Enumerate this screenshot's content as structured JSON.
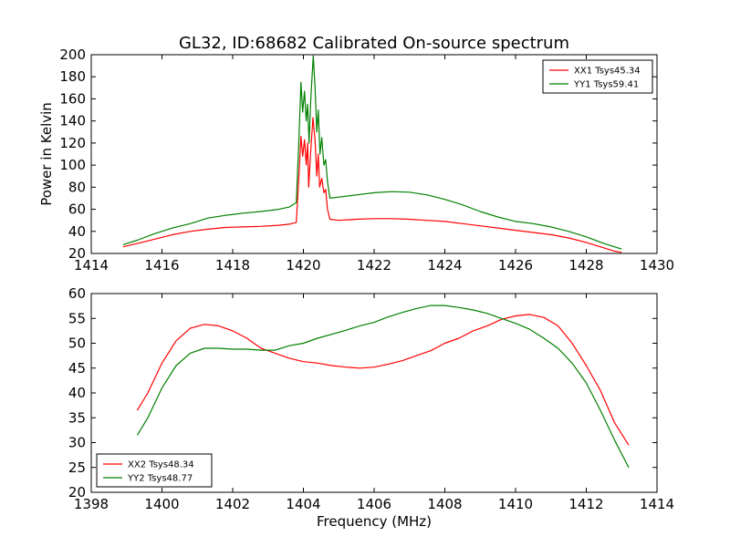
{
  "figure": {
    "title": "GL32, ID:68682 Calibrated On-source spectrum",
    "xlabel": "Frequency (MHz)"
  },
  "chart_data": [
    {
      "type": "line",
      "ylabel": "Power in Kelvin",
      "xlim": [
        1414,
        1430
      ],
      "ylim": [
        20,
        200
      ],
      "xticks": [
        1414,
        1416,
        1418,
        1420,
        1422,
        1424,
        1426,
        1428,
        1430
      ],
      "yticks": [
        20,
        40,
        60,
        80,
        100,
        120,
        140,
        160,
        180,
        200
      ],
      "legend": "top-right",
      "series": [
        {
          "name": "XX1 Tsys45.34",
          "color": "#ff0000",
          "points": [
            [
              1414.9,
              26
            ],
            [
              1415.3,
              29
            ],
            [
              1415.8,
              33
            ],
            [
              1416.3,
              37
            ],
            [
              1416.8,
              40
            ],
            [
              1417.3,
              42
            ],
            [
              1417.8,
              43.5
            ],
            [
              1418.3,
              44
            ],
            [
              1418.8,
              44.5
            ],
            [
              1419.3,
              45.5
            ],
            [
              1419.6,
              46.5
            ],
            [
              1419.8,
              48
            ],
            [
              1419.88,
              95
            ],
            [
              1419.93,
              126
            ],
            [
              1419.98,
              108
            ],
            [
              1420.03,
              123
            ],
            [
              1420.08,
              100
            ],
            [
              1420.12,
              120
            ],
            [
              1420.15,
              80
            ],
            [
              1420.2,
              110
            ],
            [
              1420.27,
              143
            ],
            [
              1420.33,
              122
            ],
            [
              1420.38,
              90
            ],
            [
              1420.42,
              110
            ],
            [
              1420.46,
              80
            ],
            [
              1420.52,
              88
            ],
            [
              1420.58,
              75
            ],
            [
              1420.63,
              78
            ],
            [
              1420.68,
              60
            ],
            [
              1420.75,
              51
            ],
            [
              1421,
              50
            ],
            [
              1421.5,
              51
            ],
            [
              1422,
              51.5
            ],
            [
              1422.5,
              51.5
            ],
            [
              1423,
              51
            ],
            [
              1423.5,
              50
            ],
            [
              1424,
              49
            ],
            [
              1424.5,
              47
            ],
            [
              1425,
              45
            ],
            [
              1425.5,
              43
            ],
            [
              1426,
              41
            ],
            [
              1426.5,
              39
            ],
            [
              1427,
              37
            ],
            [
              1427.5,
              34
            ],
            [
              1428,
              30
            ],
            [
              1428.5,
              25
            ],
            [
              1428.8,
              22
            ],
            [
              1429,
              21
            ]
          ]
        },
        {
          "name": "YY1 Tsys59.41",
          "color": "#008000",
          "points": [
            [
              1414.9,
              28
            ],
            [
              1415.3,
              32
            ],
            [
              1415.8,
              38
            ],
            [
              1416.3,
              43
            ],
            [
              1416.8,
              47
            ],
            [
              1417.3,
              52
            ],
            [
              1417.8,
              54.5
            ],
            [
              1418.3,
              56.5
            ],
            [
              1418.8,
              58
            ],
            [
              1419.3,
              60
            ],
            [
              1419.6,
              62
            ],
            [
              1419.8,
              66
            ],
            [
              1419.88,
              130
            ],
            [
              1419.93,
              175
            ],
            [
              1419.98,
              148
            ],
            [
              1420.03,
              167
            ],
            [
              1420.08,
              140
            ],
            [
              1420.12,
              155
            ],
            [
              1420.16,
              120
            ],
            [
              1420.21,
              160
            ],
            [
              1420.28,
              199
            ],
            [
              1420.33,
              170
            ],
            [
              1420.38,
              130
            ],
            [
              1420.42,
              150
            ],
            [
              1420.47,
              110
            ],
            [
              1420.52,
              125
            ],
            [
              1420.58,
              100
            ],
            [
              1420.63,
              105
            ],
            [
              1420.68,
              85
            ],
            [
              1420.75,
              70
            ],
            [
              1421,
              71
            ],
            [
              1421.5,
              73
            ],
            [
              1422,
              75
            ],
            [
              1422.5,
              76
            ],
            [
              1423,
              75.5
            ],
            [
              1423.5,
              73
            ],
            [
              1424,
              69
            ],
            [
              1424.5,
              64
            ],
            [
              1425,
              58
            ],
            [
              1425.5,
              53
            ],
            [
              1426,
              49
            ],
            [
              1426.5,
              47
            ],
            [
              1427,
              44
            ],
            [
              1427.5,
              40
            ],
            [
              1428,
              35
            ],
            [
              1428.5,
              29
            ],
            [
              1429,
              24
            ]
          ]
        }
      ]
    },
    {
      "type": "line",
      "xlabel": "Frequency (MHz)",
      "xlim": [
        1398,
        1414
      ],
      "ylim": [
        20,
        60
      ],
      "xticks": [
        1398,
        1400,
        1402,
        1404,
        1406,
        1408,
        1410,
        1412,
        1414
      ],
      "yticks": [
        20,
        25,
        30,
        35,
        40,
        45,
        50,
        55,
        60
      ],
      "legend": "bottom-left",
      "series": [
        {
          "name": "XX2 Tsys48.34",
          "color": "#ff0000",
          "points": [
            [
              1399.3,
              36.5
            ],
            [
              1399.6,
              40
            ],
            [
              1400,
              46
            ],
            [
              1400.4,
              50.5
            ],
            [
              1400.8,
              53
            ],
            [
              1401.2,
              53.8
            ],
            [
              1401.6,
              53.5
            ],
            [
              1402,
              52.5
            ],
            [
              1402.4,
              51
            ],
            [
              1402.8,
              49
            ],
            [
              1403.2,
              48
            ],
            [
              1403.6,
              47
            ],
            [
              1404,
              46.3
            ],
            [
              1404.4,
              46
            ],
            [
              1404.8,
              45.5
            ],
            [
              1405.2,
              45.2
            ],
            [
              1405.6,
              45
            ],
            [
              1406,
              45.2
            ],
            [
              1406.4,
              45.8
            ],
            [
              1406.8,
              46.5
            ],
            [
              1407.2,
              47.5
            ],
            [
              1407.6,
              48.5
            ],
            [
              1408,
              50
            ],
            [
              1408.4,
              51
            ],
            [
              1408.8,
              52.5
            ],
            [
              1409.2,
              53.5
            ],
            [
              1409.6,
              54.8
            ],
            [
              1410,
              55.5
            ],
            [
              1410.4,
              55.8
            ],
            [
              1410.8,
              55.2
            ],
            [
              1411.2,
              53.5
            ],
            [
              1411.6,
              50
            ],
            [
              1412,
              45.5
            ],
            [
              1412.4,
              40.5
            ],
            [
              1412.8,
              34
            ],
            [
              1413.2,
              29.5
            ]
          ]
        },
        {
          "name": "YY2 Tsys48.77",
          "color": "#008000",
          "points": [
            [
              1399.3,
              31.5
            ],
            [
              1399.6,
              35
            ],
            [
              1400,
              41
            ],
            [
              1400.4,
              45.5
            ],
            [
              1400.8,
              48
            ],
            [
              1401.2,
              49
            ],
            [
              1401.6,
              49
            ],
            [
              1402,
              48.8
            ],
            [
              1402.4,
              48.8
            ],
            [
              1402.8,
              48.6
            ],
            [
              1403.2,
              48.6
            ],
            [
              1403.6,
              49.5
            ],
            [
              1404,
              50
            ],
            [
              1404.4,
              51
            ],
            [
              1404.8,
              51.8
            ],
            [
              1405.2,
              52.6
            ],
            [
              1405.6,
              53.5
            ],
            [
              1406,
              54.2
            ],
            [
              1406.4,
              55.3
            ],
            [
              1406.8,
              56.2
            ],
            [
              1407.2,
              57
            ],
            [
              1407.6,
              57.6
            ],
            [
              1408,
              57.6
            ],
            [
              1408.4,
              57.2
            ],
            [
              1408.8,
              56.7
            ],
            [
              1409.2,
              56
            ],
            [
              1409.6,
              55
            ],
            [
              1410,
              54
            ],
            [
              1410.4,
              52.8
            ],
            [
              1410.8,
              51
            ],
            [
              1411.2,
              49
            ],
            [
              1411.6,
              46
            ],
            [
              1412,
              42
            ],
            [
              1412.4,
              36.5
            ],
            [
              1412.8,
              30.5
            ],
            [
              1413.2,
              25
            ]
          ]
        }
      ]
    }
  ]
}
